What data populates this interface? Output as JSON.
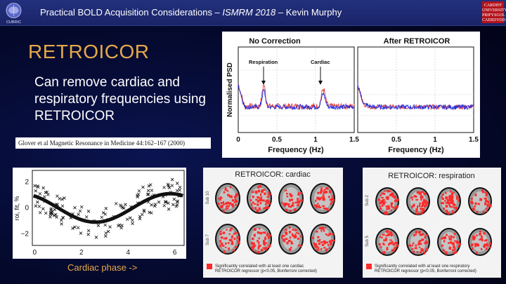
{
  "header": {
    "title_prefix": "Practical BOLD Acquisition Considerations – ",
    "title_venue": "ISMRM 2018",
    "title_suffix": " – Kevin Murphy",
    "left_logo_text": "CUBRIC",
    "right_logo_lines": [
      "CARDIFF",
      "UNIVERSITY",
      "PRIFYSGOL",
      "CAERDYDD"
    ],
    "bar_color": "#1f2b74"
  },
  "slide": {
    "title": "RETROICOR",
    "bullet": "Can remove cardiac and respiratory frequencies using RETROICOR",
    "citation_author": "Glover et al",
    "citation_journal": "Magnetic Resonance in Medicine 44:162–167 (2000)",
    "caption": "Cardiac phase ->",
    "title_color": "#e6a94a"
  },
  "chart_data": [
    {
      "type": "line",
      "panels": [
        {
          "title": "No Correction",
          "xlabel": "Frequency (Hz)",
          "xticks": [
            "0",
            "0.5",
            "1",
            "1.5"
          ],
          "annotations": [
            "Respiration",
            "Cardiac"
          ]
        },
        {
          "title": "After RETROICOR",
          "xlabel": "Frequency (Hz)",
          "xticks": [
            "0.5",
            "1",
            "1.5"
          ]
        }
      ],
      "ylabel": "Normalised PSD",
      "xlim": [
        0,
        1.5
      ],
      "respiration_peak_hz": 0.33,
      "cardiac_peak_hz": 1.1,
      "series_colors": [
        "#1a2ee6",
        "#e23a3a"
      ]
    },
    {
      "type": "scatter",
      "xlabel": "Cardiac phase ->",
      "ylabel": "roi, fit, %",
      "xticks": [
        "0",
        "2",
        "4",
        "6"
      ],
      "yticks": [
        "2",
        "0",
        "−2"
      ],
      "xlim": [
        -0.1,
        6.4
      ],
      "ylim": [
        -2.9,
        2.9
      ],
      "fit": {
        "type": "sine",
        "amplitude": 1.1,
        "phase_min_x": 2.6
      }
    }
  ],
  "brain_panels": [
    {
      "title": "RETROICOR: cardiac",
      "rows": [
        "Sub 10",
        "Sub 7"
      ],
      "legend": "Significantly correlated with at least one cardiac RETROICOR regressor (p<0.05, Bonferroni corrected)",
      "activation_color": "#ff2a2a"
    },
    {
      "title": "RETROICOR: respiration",
      "rows": [
        "Sub 2",
        "Sub 5"
      ],
      "legend": "Significantly correlated with at least one respiratory RETROICOR regressor (p<0.05, Bonferroni corrected)",
      "activation_color": "#ff2a2a"
    }
  ]
}
